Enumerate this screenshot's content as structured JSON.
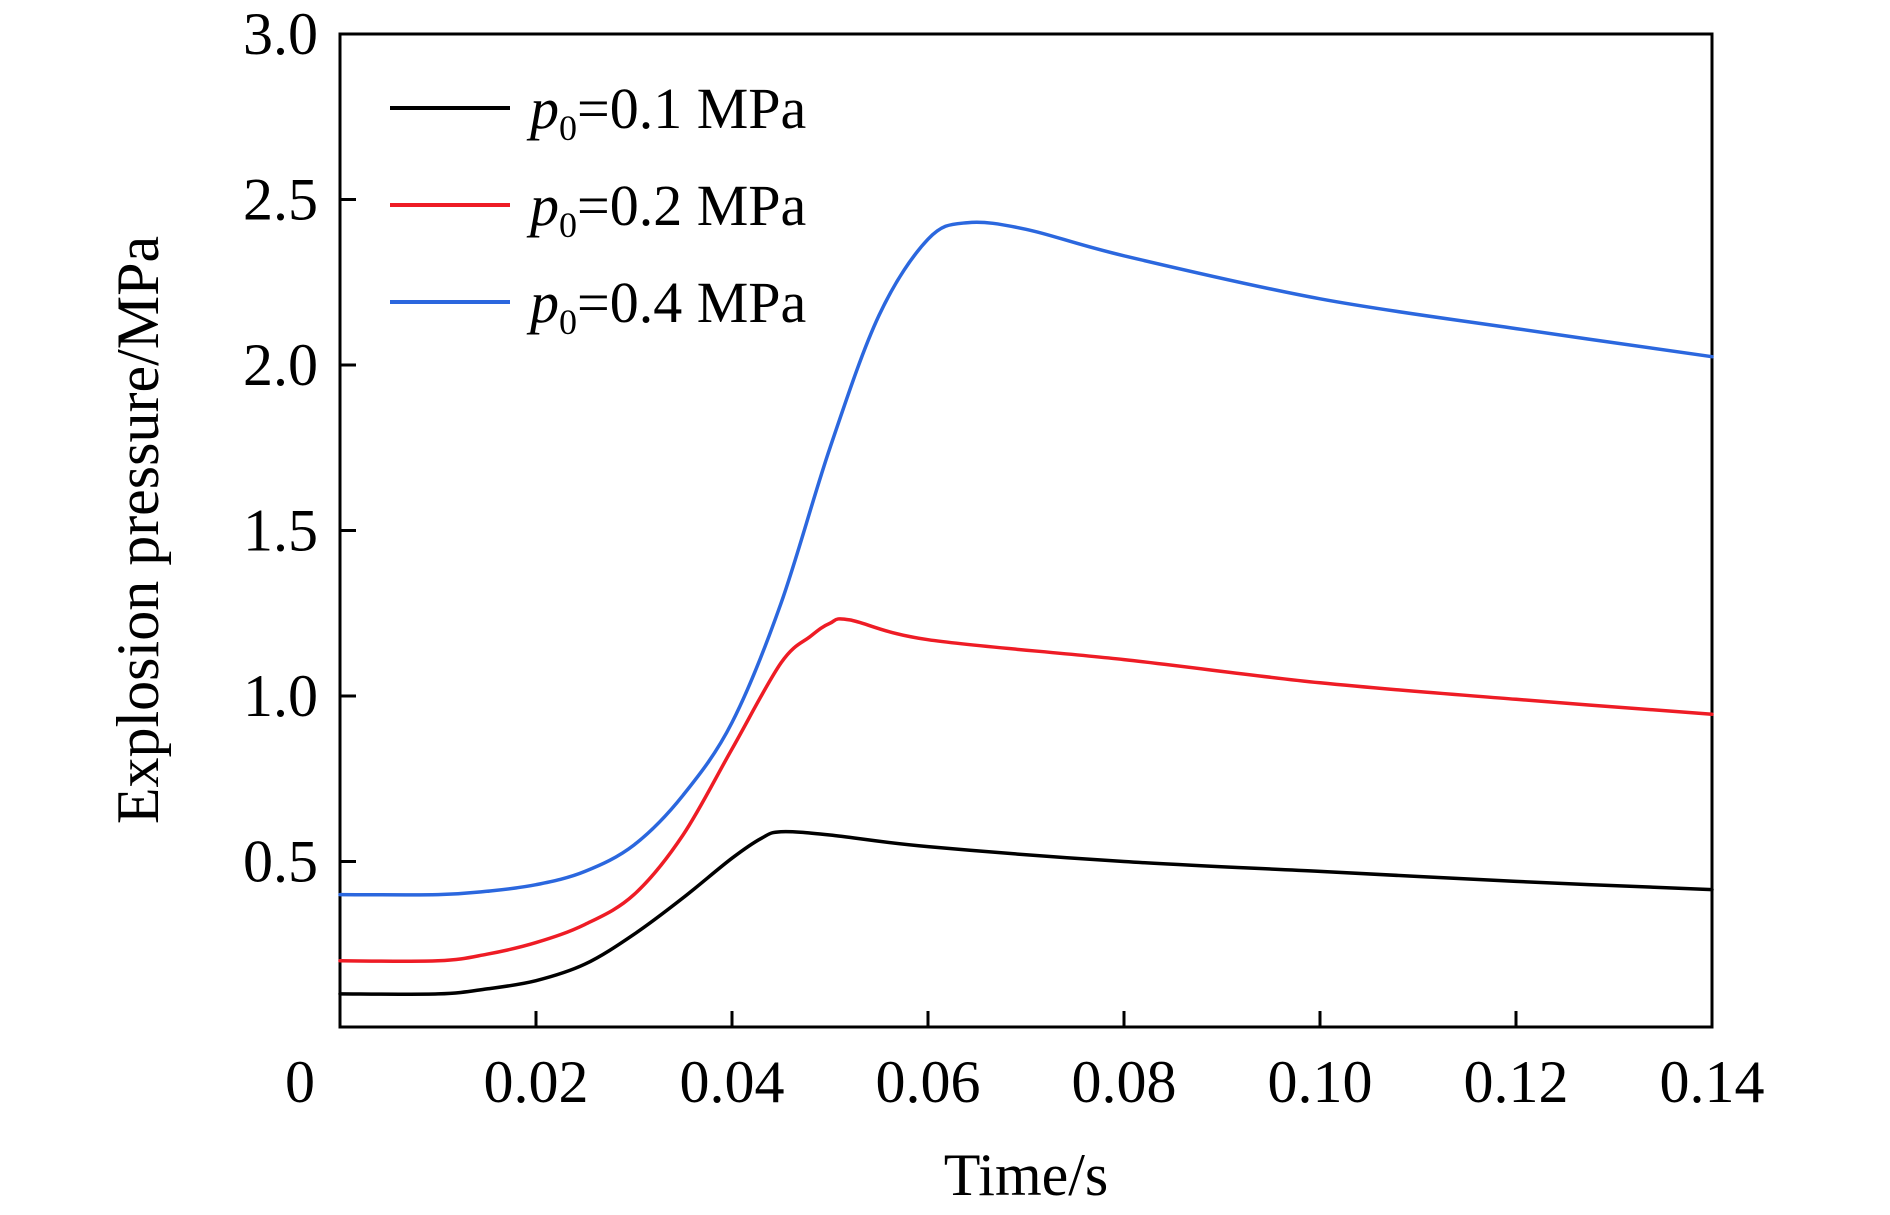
{
  "chart_data": {
    "type": "line",
    "title": "",
    "xlabel": "Time/s",
    "ylabel": "Explosion pressure/MPa",
    "xlim": [
      0,
      0.14
    ],
    "ylim": [
      0,
      3.0
    ],
    "x_ticks": [
      0,
      0.02,
      0.04,
      0.06,
      0.08,
      0.1,
      0.12,
      0.14
    ],
    "x_tick_labels": [
      "0",
      "0.02",
      "0.04",
      "0.06",
      "0.08",
      "0.10",
      "0.12",
      "0.14"
    ],
    "y_ticks": [
      0.5,
      1.0,
      1.5,
      2.0,
      2.5,
      3.0
    ],
    "y_tick_labels": [
      "0.5",
      "1.0",
      "1.5",
      "2.0",
      "2.5",
      "3.0"
    ],
    "grid": false,
    "legend_position": "top-left",
    "series": [
      {
        "name": "p0=0.1 MPa",
        "legend_var": "p",
        "legend_sub": "0",
        "legend_rest": "=0.1 MPa",
        "color": "#000000",
        "x": [
          0,
          0.01,
          0.015,
          0.02,
          0.025,
          0.03,
          0.035,
          0.04,
          0.043,
          0.045,
          0.05,
          0.06,
          0.08,
          0.1,
          0.12,
          0.14
        ],
        "y": [
          0.1,
          0.1,
          0.115,
          0.14,
          0.19,
          0.28,
          0.39,
          0.51,
          0.57,
          0.59,
          0.58,
          0.545,
          0.5,
          0.47,
          0.44,
          0.415
        ]
      },
      {
        "name": "p0=0.2 MPa",
        "legend_var": "p",
        "legend_sub": "0",
        "legend_rest": "=0.2 MPa",
        "color": "#ee1c25",
        "x": [
          0,
          0.01,
          0.015,
          0.02,
          0.025,
          0.03,
          0.035,
          0.04,
          0.045,
          0.048,
          0.05,
          0.052,
          0.06,
          0.08,
          0.1,
          0.12,
          0.14
        ],
        "y": [
          0.2,
          0.2,
          0.22,
          0.255,
          0.31,
          0.4,
          0.58,
          0.84,
          1.1,
          1.18,
          1.22,
          1.23,
          1.17,
          1.11,
          1.04,
          0.99,
          0.945
        ],
        "line_color_note": ""
      },
      {
        "name": "p0=0.4 MPa",
        "legend_var": "p",
        "legend_sub": "0",
        "legend_rest": "=0.4 MPa",
        "color": "#2b67de",
        "x": [
          0,
          0.01,
          0.015,
          0.02,
          0.025,
          0.03,
          0.035,
          0.04,
          0.045,
          0.05,
          0.055,
          0.06,
          0.064,
          0.07,
          0.08,
          0.1,
          0.12,
          0.14
        ],
        "y": [
          0.4,
          0.4,
          0.41,
          0.43,
          0.47,
          0.55,
          0.7,
          0.92,
          1.28,
          1.75,
          2.15,
          2.38,
          2.43,
          2.41,
          2.33,
          2.2,
          2.11,
          2.025
        ]
      }
    ]
  }
}
